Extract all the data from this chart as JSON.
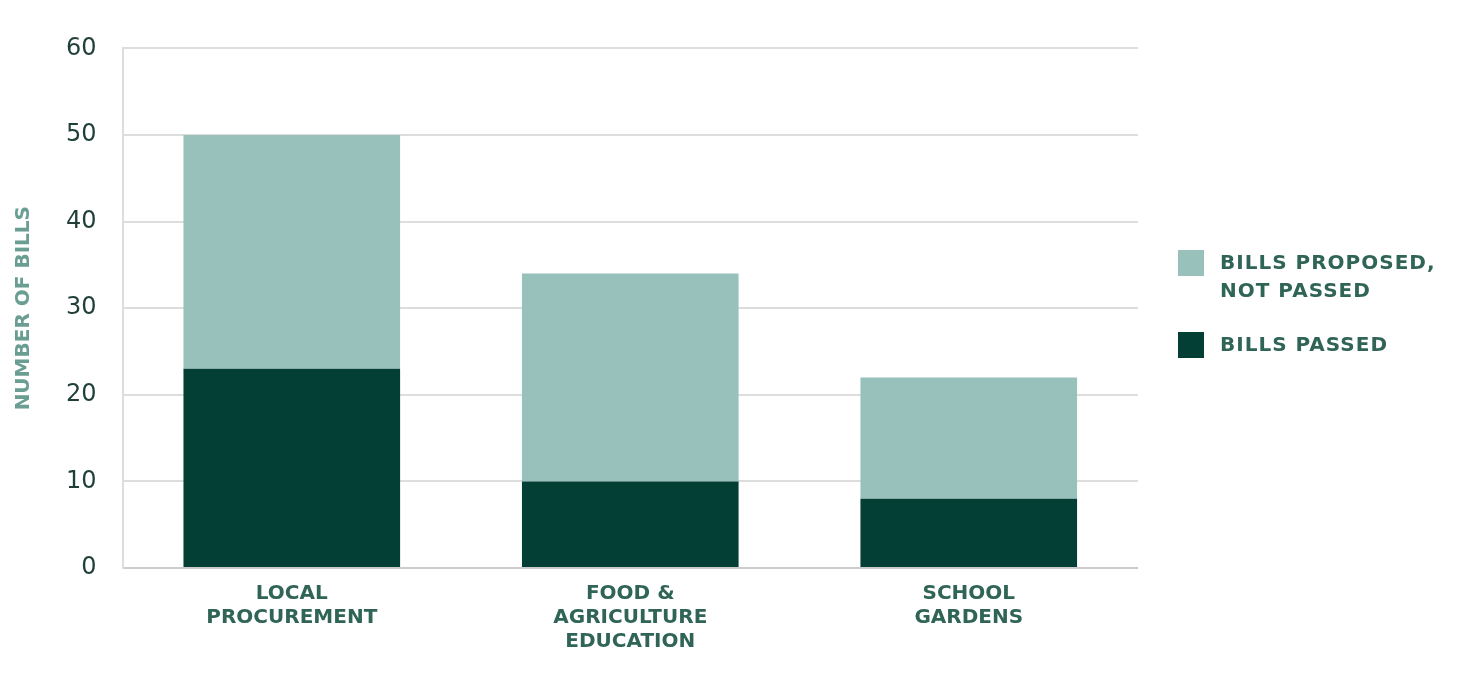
{
  "chart_data": {
    "type": "bar",
    "stacked": true,
    "ylabel": "NUMBER OF BILLS",
    "categories": [
      "LOCAL PROCUREMENT",
      "FOOD & AGRICULTURE EDUCATION",
      "SCHOOL GARDENS"
    ],
    "series": [
      {
        "name": "BILLS PASSED",
        "color": "#033f35",
        "values": [
          23,
          10,
          8
        ]
      },
      {
        "name": "BILLS PROPOSED, NOT PASSED",
        "color": "#98c1bb",
        "values": [
          27,
          24,
          14
        ]
      }
    ],
    "ylim": [
      0,
      60
    ],
    "yticks": [
      0,
      10,
      20,
      30,
      40,
      50,
      60
    ],
    "grid": "y",
    "legend": "right"
  }
}
